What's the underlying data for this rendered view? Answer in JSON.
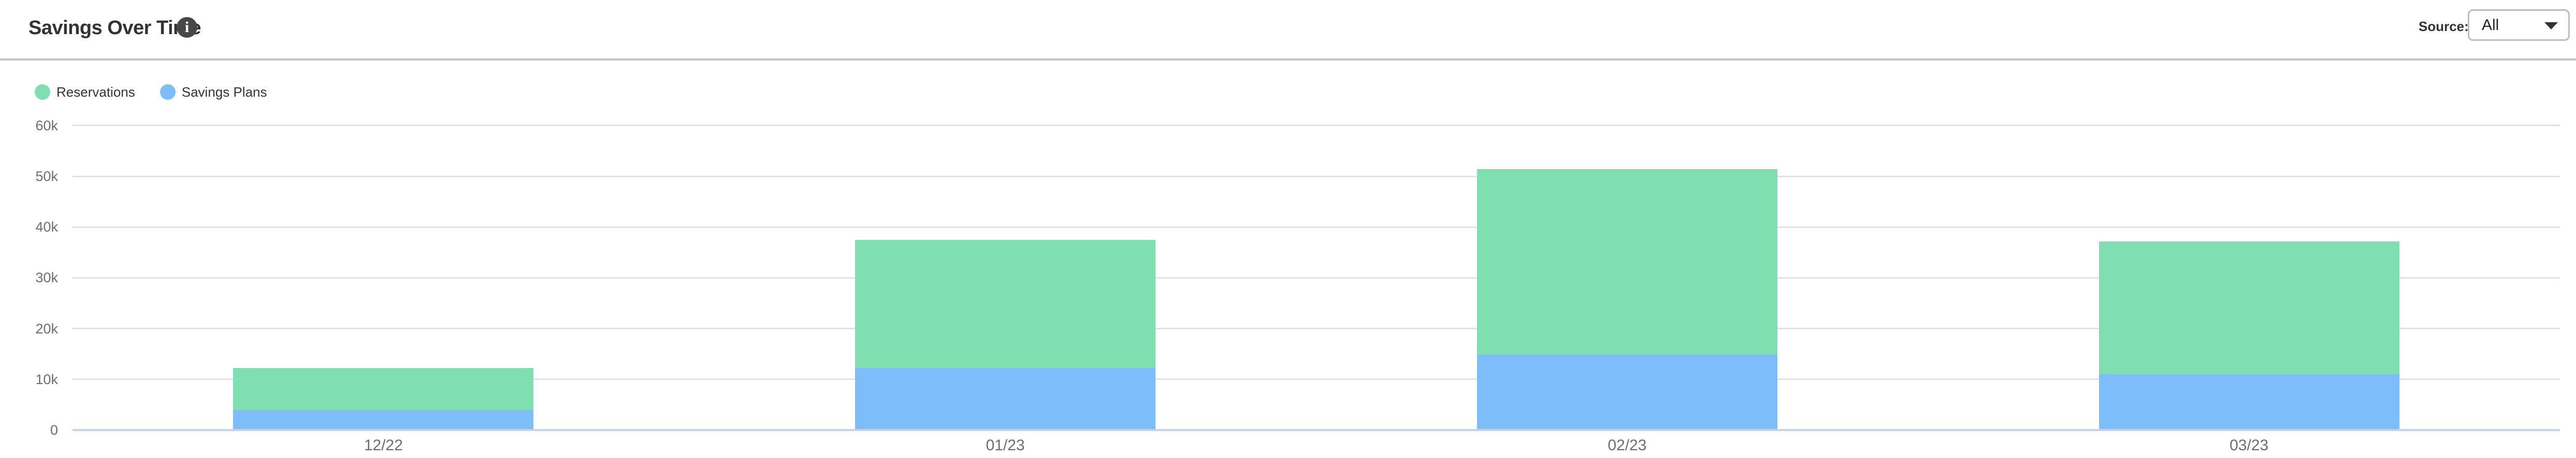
{
  "header": {
    "title": "Savings Over Time",
    "source_label": "Source:",
    "source_value": "All"
  },
  "legend": {
    "items": [
      {
        "label": "Reservations",
        "color": "#7FDFB0"
      },
      {
        "label": "Savings Plans",
        "color": "#7DBEFA"
      }
    ]
  },
  "chart_data": {
    "type": "bar",
    "stacked": true,
    "title": "Savings Over Time",
    "categories": [
      "12/22",
      "01/23",
      "02/23",
      "03/23"
    ],
    "series": [
      {
        "name": "Savings Plans",
        "color": "#7DBEFA",
        "values": [
          4000,
          12200,
          14900,
          11000
        ]
      },
      {
        "name": "Reservations",
        "color": "#7FDFB0",
        "values": [
          8200,
          25300,
          36500,
          26200
        ]
      }
    ],
    "stack_order": "bottom-to-top",
    "totals": [
      12200,
      37500,
      51400,
      37200
    ],
    "y_ticks": [
      {
        "value": 60000,
        "label": "60k"
      },
      {
        "value": 50000,
        "label": "50k"
      },
      {
        "value": 40000,
        "label": "40k"
      },
      {
        "value": 30000,
        "label": "30k"
      },
      {
        "value": 20000,
        "label": "20k"
      },
      {
        "value": 10000,
        "label": "10k"
      },
      {
        "value": 0,
        "label": "0"
      }
    ],
    "ylim": [
      0,
      60000
    ],
    "grid": true,
    "legend_position": "top-left"
  },
  "colors": {
    "reservations": "#7FDFB0",
    "savings_plans": "#7DBEFA",
    "gridline": "#E2E2E2",
    "zero_line": "#C7D2E8",
    "axis_label": "#6E6E6E",
    "title_text": "#333333",
    "divider": "#C5C5C5",
    "info_icon_bg": "#474747",
    "dropdown_border": "#BDBDBD"
  }
}
